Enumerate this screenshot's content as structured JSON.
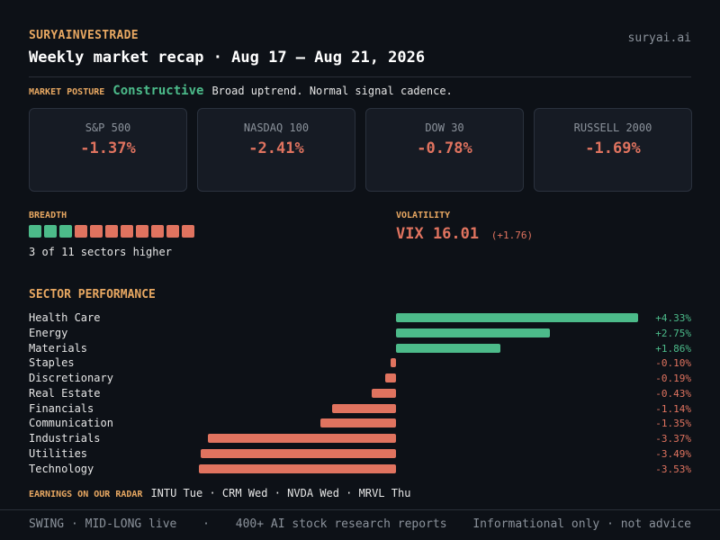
{
  "header": {
    "brand": "SURYAINVESTRADE",
    "site": "suryai.ai",
    "title": "Weekly market recap · Aug 17 – Aug 21, 2026"
  },
  "posture": {
    "label": "MARKET POSTURE",
    "value": "Constructive",
    "description": "Broad uptrend. Normal signal cadence."
  },
  "indices": [
    {
      "name": "S&P 500",
      "change": "-1.37%"
    },
    {
      "name": "NASDAQ 100",
      "change": "-2.41%"
    },
    {
      "name": "DOW 30",
      "change": "-0.78%"
    },
    {
      "name": "RUSSELL 2000",
      "change": "-1.69%"
    }
  ],
  "breadth": {
    "label": "BREADTH",
    "higher": 3,
    "total": 11,
    "text": "3 of 11 sectors higher"
  },
  "volatility": {
    "label": "VOLATILITY",
    "value": "VIX 16.01",
    "change": "(+1.76)"
  },
  "sector_performance": {
    "title": "SECTOR PERFORMANCE",
    "sectors": [
      {
        "name": "Health Care",
        "value": 4.33,
        "label": "+4.33%"
      },
      {
        "name": "Energy",
        "value": 2.75,
        "label": "+2.75%"
      },
      {
        "name": "Materials",
        "value": 1.86,
        "label": "+1.86%"
      },
      {
        "name": "Staples",
        "value": -0.1,
        "label": "-0.10%"
      },
      {
        "name": "Discretionary",
        "value": -0.19,
        "label": "-0.19%"
      },
      {
        "name": "Real Estate",
        "value": -0.43,
        "label": "-0.43%"
      },
      {
        "name": "Financials",
        "value": -1.14,
        "label": "-1.14%"
      },
      {
        "name": "Communication",
        "value": -1.35,
        "label": "-1.35%"
      },
      {
        "name": "Industrials",
        "value": -3.37,
        "label": "-3.37%"
      },
      {
        "name": "Utilities",
        "value": -3.49,
        "label": "-3.49%"
      },
      {
        "name": "Technology",
        "value": -3.53,
        "label": "-3.53%"
      }
    ]
  },
  "earnings": {
    "label": "EARNINGS ON OUR RADAR",
    "list": "INTU Tue · CRM Wed · NVDA Wed · MRVL Thu"
  },
  "footer": {
    "left": "SWING · MID-LONG live",
    "sep": "·",
    "middle": "400+ AI stock research reports",
    "right": "Informational only · not advice"
  },
  "colors": {
    "accent": "#e8a862",
    "positive": "#4cbb8a",
    "negative": "#e0735f",
    "background": "#0d1117"
  }
}
